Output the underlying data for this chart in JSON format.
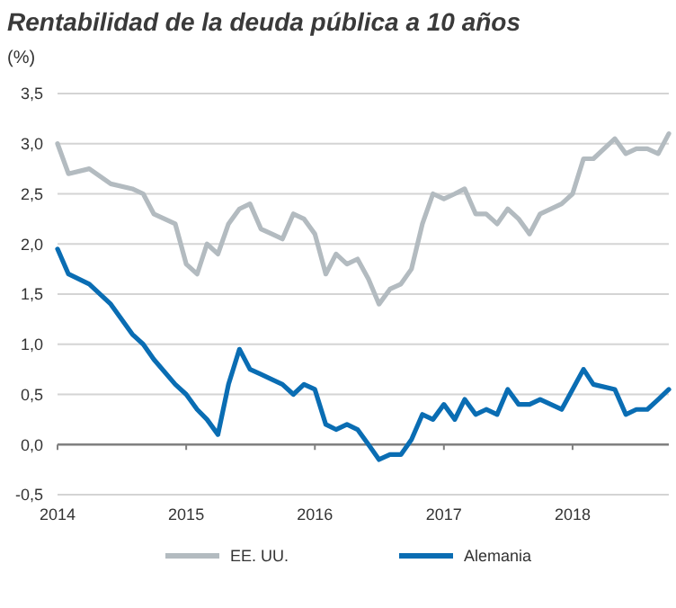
{
  "chart_data": {
    "type": "line",
    "title": "Rentabilidad de la deuda pública a 10 años",
    "ylabel": "(%)",
    "x": [
      "2014-01-01",
      "2014-02-01",
      "2014-04-01",
      "2014-06-01",
      "2014-08-01",
      "2014-09-01",
      "2014-10-01",
      "2014-12-01",
      "2015-01-01",
      "2015-02-01",
      "2015-03-01",
      "2015-04-01",
      "2015-05-01",
      "2015-06-01",
      "2015-07-01",
      "2015-08-01",
      "2015-09-01",
      "2015-10-01",
      "2015-11-01",
      "2015-12-01",
      "2016-01-01",
      "2016-02-01",
      "2016-03-01",
      "2016-04-01",
      "2016-05-01",
      "2016-06-01",
      "2016-07-01",
      "2016-08-01",
      "2016-09-01",
      "2016-10-01",
      "2016-11-01",
      "2016-12-01",
      "2017-01-01",
      "2017-02-01",
      "2017-03-01",
      "2017-04-01",
      "2017-05-01",
      "2017-06-01",
      "2017-07-01",
      "2017-08-01",
      "2017-09-01",
      "2017-10-01",
      "2017-12-01",
      "2018-01-01",
      "2018-02-01",
      "2018-03-01",
      "2018-05-01",
      "2018-06-01",
      "2018-07-01",
      "2018-08-01",
      "2018-09-01",
      "2018-10-01"
    ],
    "series": [
      {
        "name": "EE. UU.",
        "color": "#b3bbc0",
        "values": [
          3.0,
          2.7,
          2.75,
          2.6,
          2.55,
          2.5,
          2.3,
          2.2,
          1.8,
          1.7,
          2.0,
          1.9,
          2.2,
          2.35,
          2.4,
          2.15,
          2.1,
          2.05,
          2.3,
          2.25,
          2.1,
          1.7,
          1.9,
          1.8,
          1.85,
          1.65,
          1.4,
          1.55,
          1.6,
          1.75,
          2.2,
          2.5,
          2.45,
          2.5,
          2.55,
          2.3,
          2.3,
          2.2,
          2.35,
          2.25,
          2.1,
          2.3,
          2.4,
          2.5,
          2.85,
          2.85,
          3.05,
          2.9,
          2.95,
          2.95,
          2.9,
          3.1
        ]
      },
      {
        "name": "Alemania",
        "color": "#0a6db3",
        "values": [
          1.95,
          1.7,
          1.6,
          1.4,
          1.1,
          1.0,
          0.85,
          0.6,
          0.5,
          0.35,
          0.25,
          0.1,
          0.6,
          0.95,
          0.75,
          0.7,
          0.65,
          0.6,
          0.5,
          0.6,
          0.55,
          0.2,
          0.15,
          0.2,
          0.15,
          0.0,
          -0.15,
          -0.1,
          -0.1,
          0.05,
          0.3,
          0.25,
          0.4,
          0.25,
          0.45,
          0.3,
          0.35,
          0.3,
          0.55,
          0.4,
          0.4,
          0.45,
          0.35,
          0.55,
          0.75,
          0.6,
          0.55,
          0.3,
          0.35,
          0.35,
          0.45,
          0.55
        ]
      }
    ],
    "xlim": [
      "2014-01-01",
      "2018-10-01"
    ],
    "xticks": [
      "2014",
      "2015",
      "2016",
      "2017",
      "2018"
    ],
    "ylim": [
      -0.5,
      3.5
    ],
    "yticks": [
      {
        "value": -0.5,
        "label": "-0,5"
      },
      {
        "value": 0,
        "label": "0,0"
      },
      {
        "value": 0.5,
        "label": "0,5"
      },
      {
        "value": 1,
        "label": "1,0"
      },
      {
        "value": 1.5,
        "label": "1,5"
      },
      {
        "value": 2,
        "label": "2,0"
      },
      {
        "value": 2.5,
        "label": "2,5"
      },
      {
        "value": 3,
        "label": "3,0"
      },
      {
        "value": 3.5,
        "label": "3,5"
      }
    ],
    "grid": "y",
    "legend": "bottom",
    "line_style": "solid",
    "marker": "none"
  }
}
